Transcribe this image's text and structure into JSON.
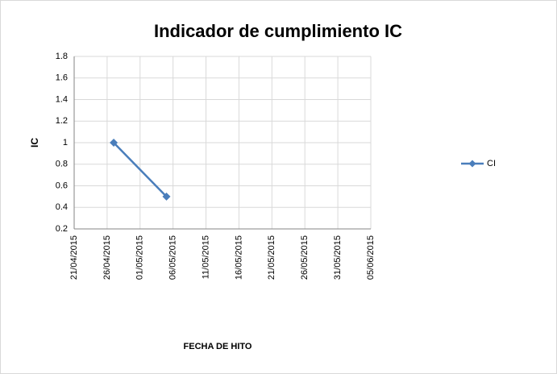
{
  "chart_data": {
    "type": "line",
    "title": "Indicador de cumplimiento IC",
    "x_label": "FECHA DE HITO",
    "y_label": "IC",
    "x": [
      "27/04/2015",
      "05/05/2015"
    ],
    "series": [
      {
        "name": "CI",
        "color": "#4a7ebb",
        "values": [
          1,
          0.5
        ]
      }
    ],
    "xlim": [
      "21/04/2015",
      "05/06/2015"
    ],
    "xticks": [
      "21/04/2015",
      "26/04/2015",
      "01/05/2015",
      "06/05/2015",
      "11/05/2015",
      "16/05/2015",
      "21/05/2015",
      "26/05/2015",
      "31/05/2015",
      "05/06/2015"
    ],
    "ylim": [
      0.2,
      1.8
    ],
    "yticks": [
      0.2,
      0.4,
      0.6,
      0.8,
      1,
      1.2,
      1.4,
      1.6,
      1.8
    ],
    "grid": true,
    "legend": "right"
  }
}
